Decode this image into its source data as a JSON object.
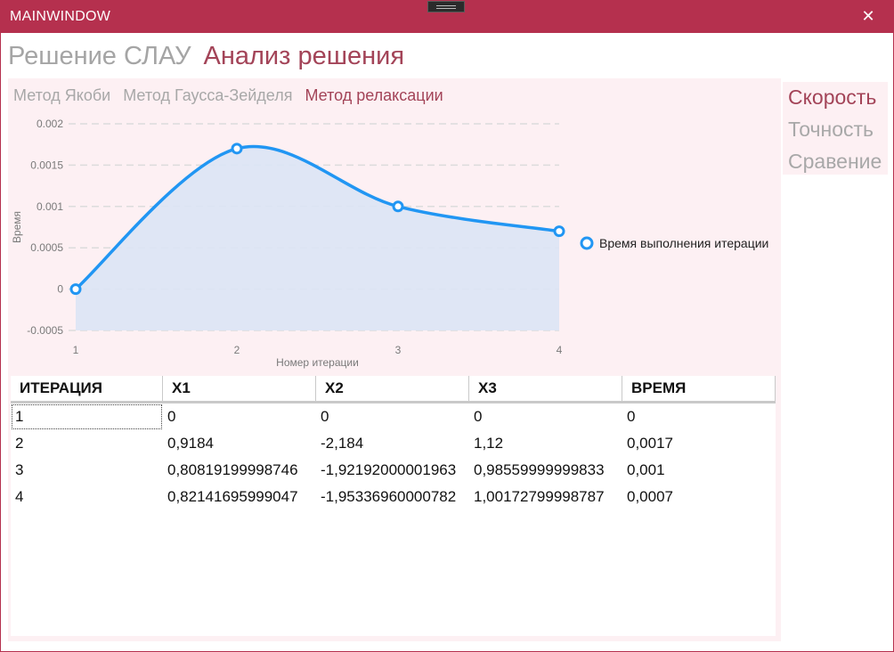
{
  "window": {
    "title": "MAINWINDOW",
    "close_glyph": "✕"
  },
  "main_tabs": [
    {
      "label": "Решение СЛАУ"
    },
    {
      "label": "Анализ решения"
    }
  ],
  "method_tabs": [
    {
      "label": "Метод Якоби"
    },
    {
      "label": "Метод Гаусса-Зейделя"
    },
    {
      "label": "Метод релаксации"
    }
  ],
  "side_tabs": [
    {
      "label": "Скорость"
    },
    {
      "label": "Точность"
    },
    {
      "label": "Сравение"
    }
  ],
  "colors": {
    "accent": "#a34458",
    "titlebar": "#b5304e",
    "series": "#2196f3",
    "area": "#dce4f5",
    "panel": "#fdf0f3"
  },
  "chart_data": {
    "type": "area",
    "x": [
      1,
      2,
      3,
      4
    ],
    "y_ticks": [
      "-0.0005",
      "0",
      "0.0005",
      "0.001",
      "0.0015",
      "0.002"
    ],
    "x_ticks": [
      "1",
      "2",
      "3",
      "4"
    ],
    "series": [
      {
        "name": "Время выполнения итерации",
        "values": [
          0,
          0.0017,
          0.001,
          0.0007
        ]
      }
    ],
    "xlabel": "Номер итерации",
    "ylabel": "Время",
    "ylim": [
      -0.0005,
      0.002
    ],
    "grid": true,
    "legend": "right"
  },
  "table": {
    "headers": [
      "ИТЕРАЦИЯ",
      "X1",
      "X2",
      "X3",
      "ВРЕМЯ"
    ],
    "rows": [
      [
        "1",
        "0",
        "0",
        "0",
        "0"
      ],
      [
        "2",
        "0,9184",
        "-2,184",
        "1,12",
        "0,0017"
      ],
      [
        "3",
        "0,80819199998746",
        "-1,92192000001963",
        "0,98559999999833",
        "0,001"
      ],
      [
        "4",
        "0,82141695999047",
        "-1,95336960000782",
        "1,00172799998787",
        "0,0007"
      ]
    ]
  }
}
